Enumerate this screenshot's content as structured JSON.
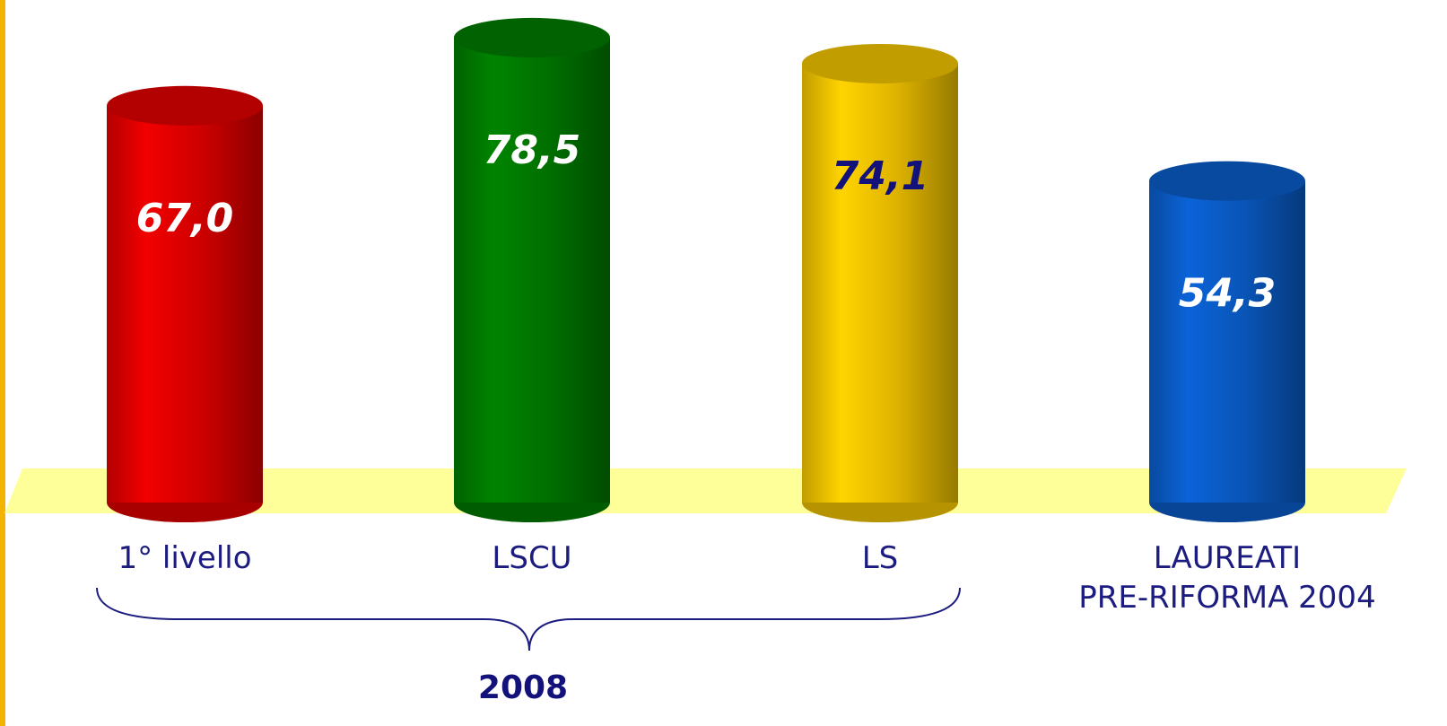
{
  "chart_data": {
    "type": "bar",
    "categories": [
      "1° livello",
      "LSCU",
      "LS",
      "LAUREATI\nPRE-RIFORMA 2004"
    ],
    "values": [
      67.0,
      78.5,
      74.1,
      54.3
    ],
    "value_labels": [
      "67,0",
      "78,5",
      "74,1",
      "54,3"
    ],
    "colors": [
      "#e00000",
      "#007a00",
      "#f2c400",
      "#0a5cc8"
    ],
    "label_colors": [
      "#ffffff",
      "#ffffff",
      "#12127a",
      "#ffffff"
    ],
    "annotations": [
      "2008"
    ]
  }
}
